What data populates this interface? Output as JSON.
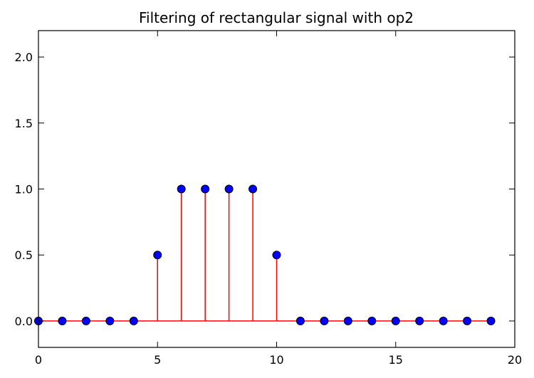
{
  "chart_data": {
    "type": "stem",
    "title": "Filtering of rectangular signal with op2",
    "xlabel": "",
    "ylabel": "",
    "xlim": [
      0,
      20
    ],
    "ylim": [
      -0.2,
      2.2
    ],
    "x_ticks": [
      "0",
      "5",
      "10",
      "15",
      "20"
    ],
    "y_ticks": [
      "0.0",
      "0.5",
      "1.0",
      "1.5",
      "2.0"
    ],
    "grid": false,
    "x": [
      0,
      1,
      2,
      3,
      4,
      5,
      6,
      7,
      8,
      9,
      10,
      11,
      12,
      13,
      14,
      15,
      16,
      17,
      18,
      19
    ],
    "values": [
      0,
      0,
      0,
      0,
      0,
      0.5,
      1,
      1,
      1,
      1,
      0.5,
      0,
      0,
      0,
      0,
      0,
      0,
      0,
      0,
      0
    ],
    "colors": {
      "stem": "#ff0000",
      "baseline": "#ff0000",
      "marker_fill": "#0000ff",
      "marker_edge": "#000000"
    }
  }
}
